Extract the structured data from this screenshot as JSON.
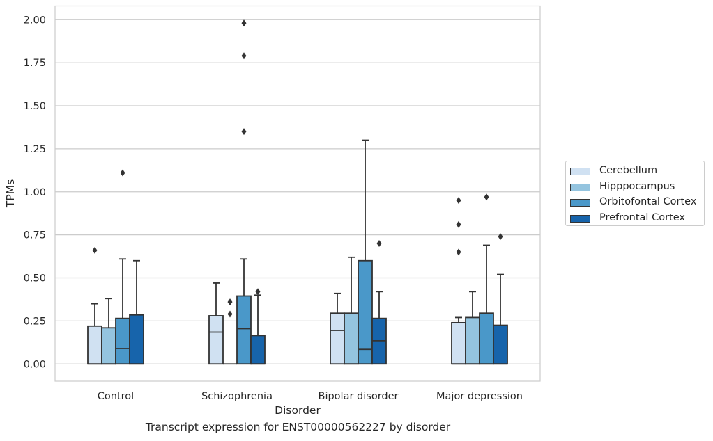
{
  "caption": "Transcript expression for ENST00000562227 by disorder",
  "chart_data": {
    "type": "box",
    "title": "",
    "xlabel": "Disorder",
    "ylabel": "TPMs",
    "ylim": [
      -0.1,
      2.08
    ],
    "yticks": [
      0.0,
      0.25,
      0.5,
      0.75,
      1.0,
      1.25,
      1.5,
      1.75,
      2.0
    ],
    "ytick_labels": [
      "0.00",
      "0.25",
      "0.50",
      "0.75",
      "1.00",
      "1.25",
      "1.50",
      "1.75",
      "2.00"
    ],
    "grid": "horizontal",
    "legend_placement": "right",
    "categories": [
      "Control",
      "Schizophrenia",
      "Bipolar disorder",
      "Major depression"
    ],
    "series": [
      {
        "name": "Cerebellum",
        "color": "#d0e1f2",
        "boxes": [
          {
            "q1": 0.0,
            "median": 0.0,
            "q3": 0.22,
            "whisker_low": 0.0,
            "whisker_high": 0.35,
            "outliers": [
              0.66
            ]
          },
          {
            "q1": 0.0,
            "median": 0.185,
            "q3": 0.28,
            "whisker_low": 0.0,
            "whisker_high": 0.47,
            "outliers": []
          },
          {
            "q1": 0.0,
            "median": 0.195,
            "q3": 0.295,
            "whisker_low": 0.0,
            "whisker_high": 0.41,
            "outliers": []
          },
          {
            "q1": 0.0,
            "median": 0.0,
            "q3": 0.24,
            "whisker_low": 0.0,
            "whisker_high": 0.27,
            "outliers": [
              0.65,
              0.81,
              0.95
            ]
          }
        ]
      },
      {
        "name": "Hipppocampus",
        "color": "#94c4df",
        "boxes": [
          {
            "q1": 0.0,
            "median": 0.0,
            "q3": 0.21,
            "whisker_low": 0.0,
            "whisker_high": 0.38,
            "outliers": []
          },
          {
            "q1": 0.0,
            "median": 0.0,
            "q3": 0.0,
            "whisker_low": 0.0,
            "whisker_high": 0.0,
            "outliers": [
              0.29,
              0.36
            ]
          },
          {
            "q1": 0.0,
            "median": 0.0,
            "q3": 0.295,
            "whisker_low": 0.0,
            "whisker_high": 0.62,
            "outliers": []
          },
          {
            "q1": 0.0,
            "median": 0.0,
            "q3": 0.27,
            "whisker_low": 0.0,
            "whisker_high": 0.42,
            "outliers": []
          }
        ]
      },
      {
        "name": "Orbitofontal Cortex",
        "color": "#4a98c9",
        "boxes": [
          {
            "q1": 0.0,
            "median": 0.09,
            "q3": 0.265,
            "whisker_low": 0.0,
            "whisker_high": 0.61,
            "outliers": [
              1.11
            ]
          },
          {
            "q1": 0.0,
            "median": 0.205,
            "q3": 0.395,
            "whisker_low": 0.0,
            "whisker_high": 0.61,
            "outliers": [
              1.35,
              1.79,
              1.98
            ]
          },
          {
            "q1": 0.0,
            "median": 0.085,
            "q3": 0.6,
            "whisker_low": 0.0,
            "whisker_high": 1.3,
            "outliers": []
          },
          {
            "q1": 0.0,
            "median": 0.0,
            "q3": 0.295,
            "whisker_low": 0.0,
            "whisker_high": 0.69,
            "outliers": [
              0.97
            ]
          }
        ]
      },
      {
        "name": "Prefrontal Cortex",
        "color": "#1764ab",
        "boxes": [
          {
            "q1": 0.0,
            "median": 0.0,
            "q3": 0.285,
            "whisker_low": 0.0,
            "whisker_high": 0.6,
            "outliers": []
          },
          {
            "q1": 0.0,
            "median": 0.0,
            "q3": 0.165,
            "whisker_low": 0.0,
            "whisker_high": 0.4,
            "outliers": [
              0.42
            ]
          },
          {
            "q1": 0.0,
            "median": 0.135,
            "q3": 0.265,
            "whisker_low": 0.0,
            "whisker_high": 0.42,
            "outliers": [
              0.7
            ]
          },
          {
            "q1": 0.0,
            "median": 0.0,
            "q3": 0.225,
            "whisker_low": 0.0,
            "whisker_high": 0.52,
            "outliers": [
              0.74
            ]
          }
        ]
      }
    ]
  }
}
